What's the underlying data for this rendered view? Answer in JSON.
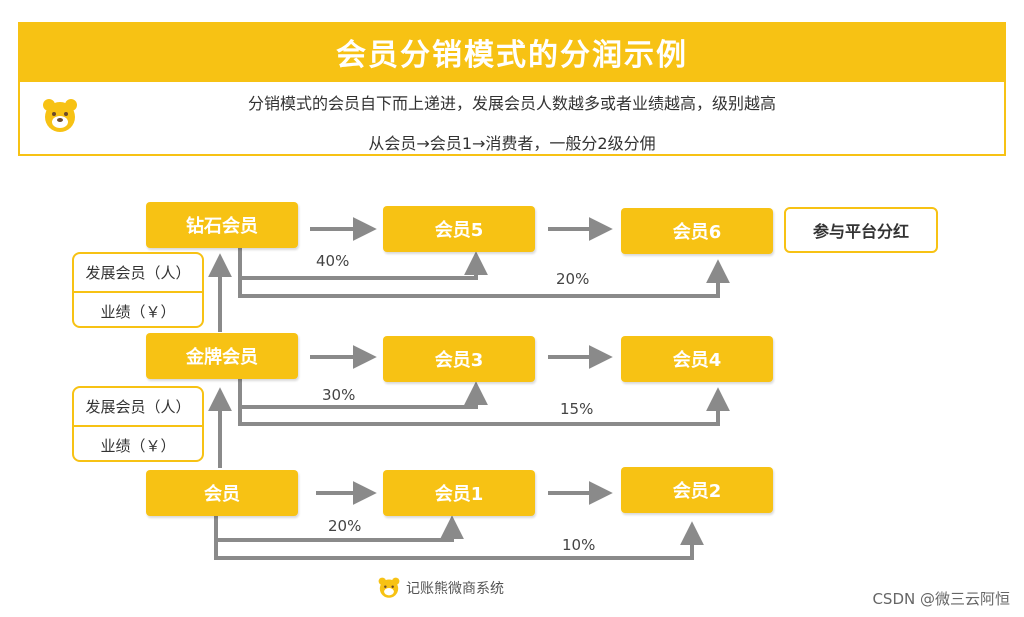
{
  "header": {
    "title": "会员分销模式的分润示例",
    "line1": "分销模式的会员自下而上递进，发展会员人数越多或者业绩越高，级别越高",
    "line2": "从会员→会员1→消费者，一般分2级分佣"
  },
  "nodes": {
    "diamond": "钻石会员",
    "m5": "会员5",
    "m6": "会员6",
    "platform": "参与平台分红",
    "gold": "金牌会员",
    "m3": "会员3",
    "m4": "会员4",
    "member": "会员",
    "m1": "会员1",
    "m2": "会员2"
  },
  "dev_boxes": [
    {
      "develop": "发展会员（人）",
      "performance": "业绩（￥）"
    },
    {
      "develop": "发展会员（人）",
      "performance": "业绩（￥）"
    }
  ],
  "percentages": {
    "top_first": "40%",
    "top_second": "20%",
    "mid_first": "30%",
    "mid_second": "15%",
    "bot_first": "20%",
    "bot_second": "10%"
  },
  "footer": {
    "brand": "记账熊微商系统"
  },
  "watermark": "CSDN @微三云阿恒",
  "colors": {
    "accent": "#f7c214",
    "arrow": "#8a8a8a"
  }
}
